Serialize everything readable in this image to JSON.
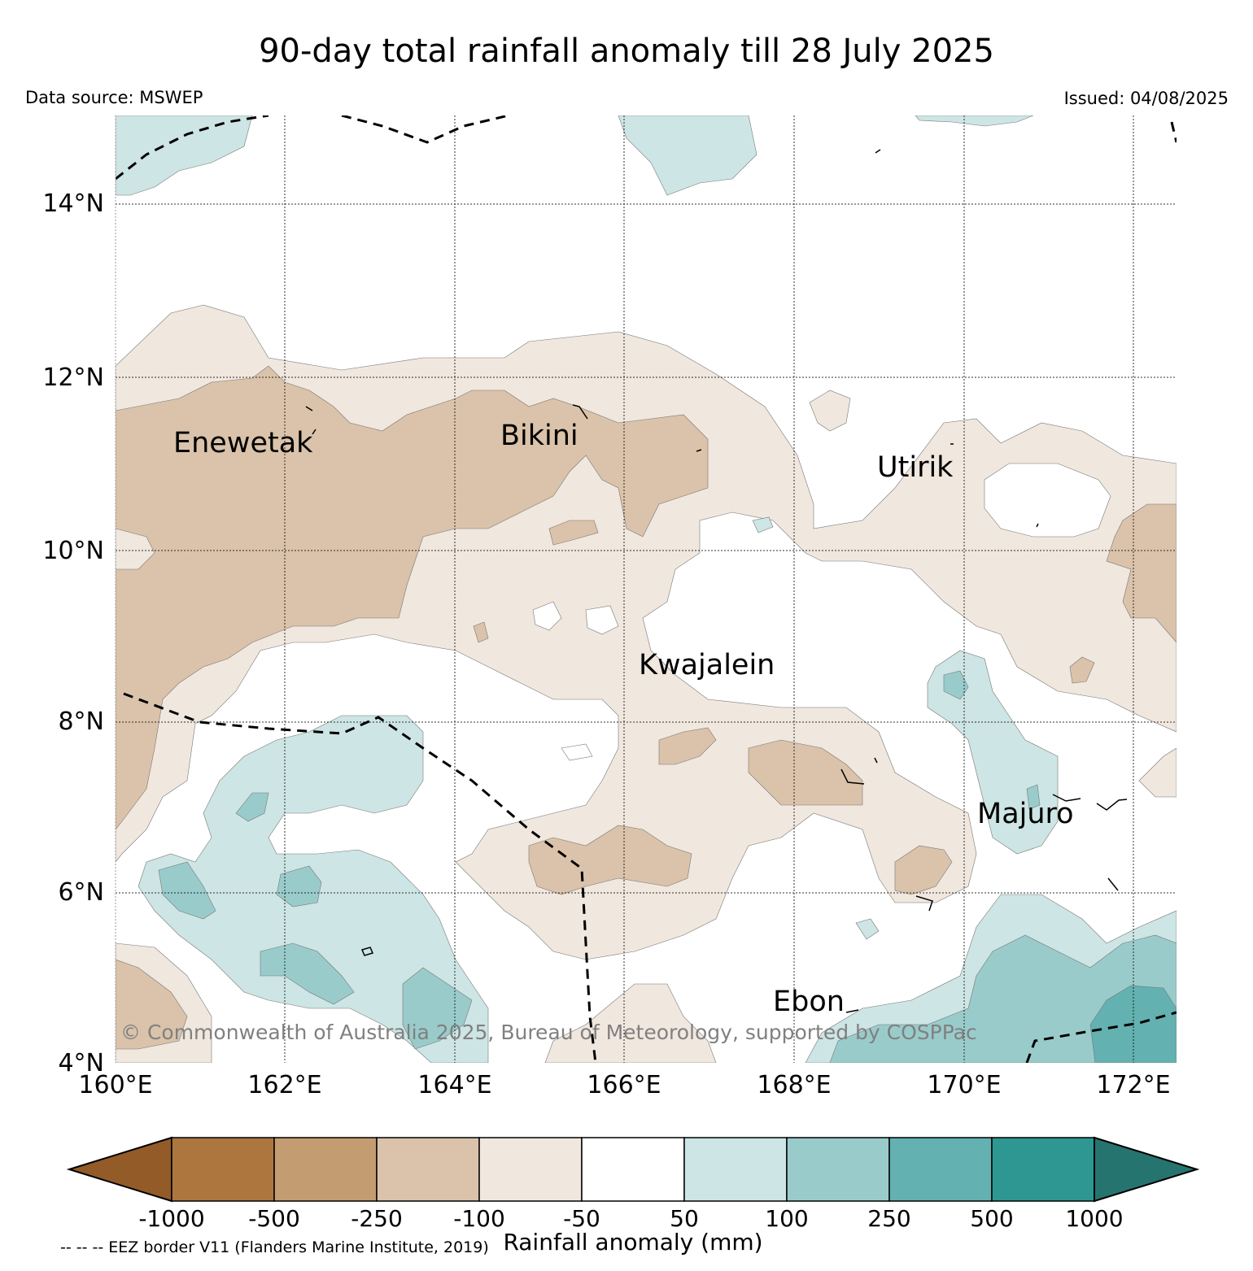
{
  "title": "90-day total rainfall anomaly till 28 July 2025",
  "data_source": "Data source: MSWEP",
  "issued": "Issued: 04/08/2025",
  "copyright": "© Commonwealth of Australia 2025, Bureau of Meteorology, supported by COSPPac",
  "eez_note": "-- -- -- EEZ border V11 (Flanders Marine Institute, 2019)",
  "axes": {
    "latitude_labels": [
      "14°N",
      "12°N",
      "10°N",
      "8°N",
      "6°N",
      "4°N"
    ],
    "longitude_labels": [
      "160°E",
      "162°E",
      "164°E",
      "166°E",
      "168°E",
      "170°E",
      "172°E"
    ]
  },
  "places": [
    {
      "name": "Enewetak"
    },
    {
      "name": "Bikini"
    },
    {
      "name": "Utirik"
    },
    {
      "name": "Kwajalein"
    },
    {
      "name": "Majuro"
    },
    {
      "name": "Ebon"
    }
  ],
  "colorbar": {
    "title": "Rainfall anomaly (mm)",
    "tick_labels": [
      "-1000",
      "-500",
      "-250",
      "-100",
      "-50",
      "50",
      "100",
      "250",
      "500",
      "1000"
    ],
    "colors": [
      "#925b28",
      "#ad763e",
      "#c49c72",
      "#dac3aa",
      "#f0e7de",
      "#ffffff",
      "#cde5e4",
      "#9acbcb",
      "#63b1b0",
      "#2f9792",
      "#26746f"
    ]
  }
}
